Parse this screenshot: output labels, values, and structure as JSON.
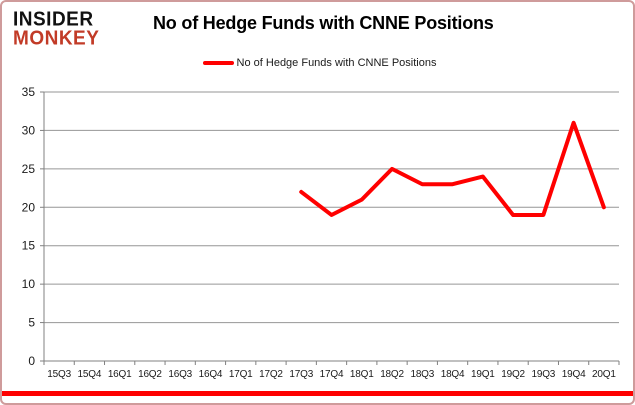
{
  "logo": {
    "line1": "INSIDER",
    "line2": "MONKEY"
  },
  "title": "No of Hedge Funds with CNNE Positions",
  "legend": {
    "label": "No of Hedge Funds with CNNE Positions",
    "color": "#ff0000"
  },
  "colors": {
    "line": "#ff0000",
    "grid": "#969696",
    "axis": "#808080",
    "tick_text": "#1a1a1a",
    "frame": "#cf9b9b",
    "bottom_rule": "#fe0000",
    "logo_black": "#111111",
    "logo_red": "#c23b27"
  },
  "chart_data": {
    "type": "line",
    "title": "No of Hedge Funds with CNNE Positions",
    "categories": [
      "15Q3",
      "15Q4",
      "16Q1",
      "16Q2",
      "16Q3",
      "16Q4",
      "17Q1",
      "17Q2",
      "17Q3",
      "17Q4",
      "18Q1",
      "18Q2",
      "18Q3",
      "18Q4",
      "19Q1",
      "19Q2",
      "19Q3",
      "19Q4",
      "20Q1"
    ],
    "series": [
      {
        "name": "No of Hedge Funds with CNNE Positions",
        "color": "#ff0000",
        "values": [
          null,
          null,
          null,
          null,
          null,
          null,
          null,
          null,
          22,
          19,
          21,
          25,
          23,
          23,
          24,
          19,
          19,
          31,
          20
        ]
      }
    ],
    "ylim": [
      0,
      35
    ],
    "yticks": [
      0,
      5,
      10,
      15,
      20,
      25,
      30,
      35
    ],
    "grid": "horizontal",
    "legend_position": "top-center"
  }
}
